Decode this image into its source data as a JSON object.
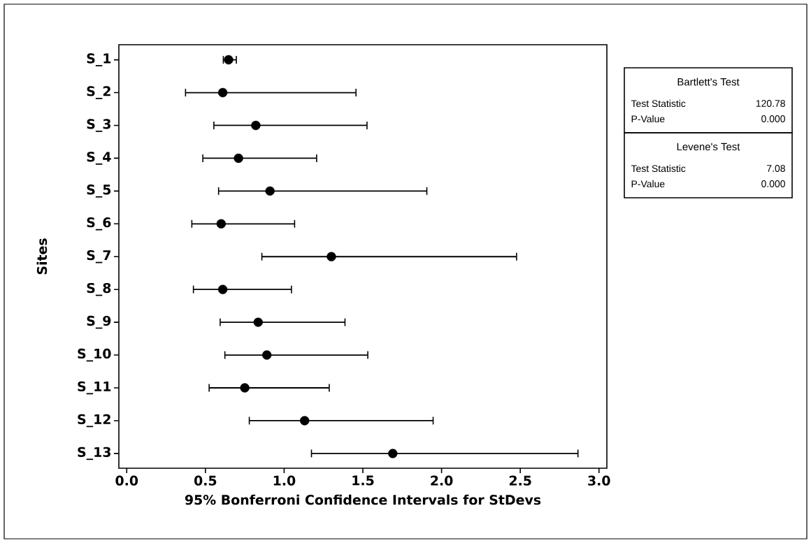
{
  "chart_data": {
    "type": "scatter",
    "orientation": "horizontal",
    "xlabel": "95% Bonferroni Confidence Intervals for StDevs",
    "ylabel": "Sites",
    "categories": [
      "S_1",
      "S_2",
      "S_3",
      "S_4",
      "S_5",
      "S_6",
      "S_7",
      "S_8",
      "S_9",
      "S_10",
      "S_11",
      "S_12",
      "S_13"
    ],
    "values": [
      0.647,
      0.61,
      0.82,
      0.71,
      0.91,
      0.6,
      1.3,
      0.61,
      0.835,
      0.89,
      0.75,
      1.13,
      1.69
    ],
    "errors": [
      [
        0.61,
        0.7
      ],
      [
        0.37,
        1.46
      ],
      [
        0.55,
        1.53
      ],
      [
        0.48,
        1.21
      ],
      [
        0.58,
        1.91
      ],
      [
        0.41,
        1.07
      ],
      [
        0.855,
        2.48
      ],
      [
        0.42,
        1.05
      ],
      [
        0.59,
        1.39
      ],
      [
        0.62,
        1.535
      ],
      [
        0.52,
        1.29
      ],
      [
        0.775,
        1.95
      ],
      [
        1.17,
        2.87
      ]
    ],
    "color": "#000000",
    "marker": "circle",
    "xlim": [
      -0.05,
      3.05
    ],
    "xticks": [
      {
        "value": 0,
        "label": "0.0"
      },
      0.5,
      {
        "value": 1,
        "label": "1.0"
      },
      1.5,
      {
        "value": 2,
        "label": "2.0"
      },
      2.5,
      {
        "value": 3,
        "label": "3.0"
      }
    ],
    "annotations": [
      "Bartlett's Test",
      "Test Statistic",
      "120.78",
      "P-Value",
      "0.000",
      "Levene's Test",
      "Test Statistic",
      "7.08",
      "P-Value",
      "0.000"
    ]
  }
}
